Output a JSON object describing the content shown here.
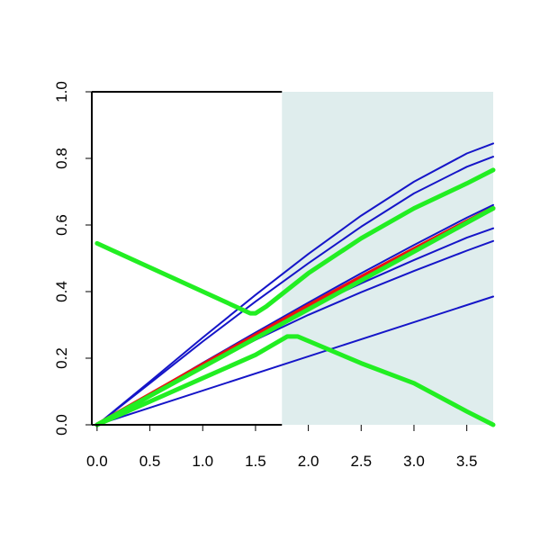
{
  "chart_data": {
    "type": "line",
    "title": "",
    "xlabel": "",
    "ylabel": "",
    "xlim": [
      -0.05,
      3.75
    ],
    "ylim": [
      0,
      1.0
    ],
    "x_ticks": [
      0.0,
      0.5,
      1.0,
      1.5,
      2.0,
      2.5,
      3.0,
      3.5
    ],
    "x_tick_labels": [
      "0.0",
      "0.5",
      "1.0",
      "1.5",
      "2.0",
      "2.5",
      "3.0",
      "3.5"
    ],
    "y_ticks": [
      0.0,
      0.2,
      0.4,
      0.6,
      0.8,
      1.0
    ],
    "y_tick_labels": [
      "0.0",
      "0.2",
      "0.4",
      "0.6",
      "0.8",
      "1.0"
    ],
    "shaded_region": {
      "x_start": 1.75,
      "x_end": 3.75,
      "color": "#dfeded"
    },
    "colors": {
      "blue": "#1515c8",
      "red": "#ee1111",
      "green": "#22ee22"
    },
    "series": [
      {
        "color": "blue",
        "width": "thin",
        "x": [
          0.0,
          0.5,
          1.0,
          1.5,
          2.0,
          2.5,
          3.0,
          3.5,
          3.75
        ],
        "y": [
          0.0,
          0.13,
          0.262,
          0.39,
          0.513,
          0.628,
          0.73,
          0.815,
          0.845
        ]
      },
      {
        "color": "blue",
        "width": "thin",
        "x": [
          0.0,
          0.5,
          1.0,
          1.5,
          2.0,
          2.5,
          3.0,
          3.5,
          3.75
        ],
        "y": [
          0.0,
          0.125,
          0.25,
          0.37,
          0.485,
          0.595,
          0.695,
          0.775,
          0.805
        ]
      },
      {
        "color": "blue",
        "width": "thin",
        "x": [
          0.0,
          0.5,
          1.0,
          1.5,
          2.0,
          2.5,
          3.0,
          3.5,
          3.75
        ],
        "y": [
          0.0,
          0.093,
          0.186,
          0.277,
          0.367,
          0.455,
          0.54,
          0.622,
          0.66
        ]
      },
      {
        "color": "blue",
        "width": "thin",
        "x": [
          0.0,
          0.5,
          1.0,
          1.5,
          2.0,
          2.5,
          3.0,
          3.5,
          3.75
        ],
        "y": [
          0.0,
          0.09,
          0.18,
          0.27,
          0.352,
          0.425,
          0.495,
          0.562,
          0.59
        ]
      },
      {
        "color": "blue",
        "width": "thin",
        "x": [
          0.0,
          0.5,
          1.0,
          1.5,
          2.0,
          2.5,
          3.0,
          3.5,
          3.75
        ],
        "y": [
          0.0,
          0.087,
          0.174,
          0.255,
          0.33,
          0.398,
          0.462,
          0.523,
          0.552
        ]
      },
      {
        "color": "blue",
        "width": "thin",
        "x": [
          0.0,
          3.75
        ],
        "y": [
          0.0,
          0.385
        ]
      },
      {
        "color": "red",
        "width": "thick",
        "x": [
          0.0,
          0.5,
          1.0,
          1.5,
          2.0,
          2.5,
          3.0,
          3.5,
          3.75
        ],
        "y": [
          0.0,
          0.09,
          0.18,
          0.268,
          0.357,
          0.443,
          0.527,
          0.61,
          0.65
        ]
      },
      {
        "color": "green",
        "width": "thick",
        "x": [
          0.0,
          3.75
        ],
        "y": [
          0.0,
          0.65
        ]
      },
      {
        "color": "green",
        "width": "thick",
        "x": [
          0.0,
          1.45,
          1.5,
          1.6,
          2.0,
          2.5,
          3.0,
          3.5,
          3.75
        ],
        "y": [
          0.545,
          0.335,
          0.335,
          0.355,
          0.455,
          0.56,
          0.65,
          0.725,
          0.765
        ]
      },
      {
        "color": "green",
        "width": "thick",
        "x": [
          0.0,
          0.5,
          1.0,
          1.5,
          1.8,
          1.9,
          2.5,
          3.0,
          3.5,
          3.75
        ],
        "y": [
          0.0,
          0.07,
          0.14,
          0.21,
          0.265,
          0.265,
          0.185,
          0.125,
          0.04,
          0.0
        ]
      }
    ]
  }
}
